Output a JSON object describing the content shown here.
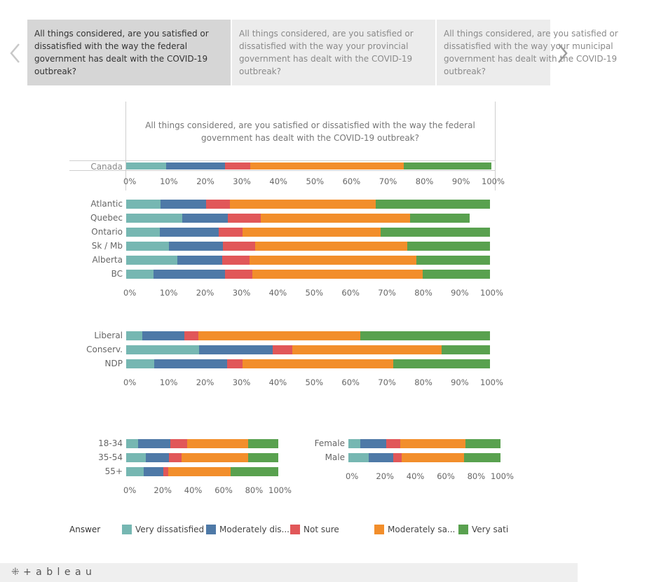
{
  "tabs": [
    {
      "text": "All things considered, are you satisfied or dissatisfied with the way the federal government has dealt with the COVID-19 outbreak?"
    },
    {
      "text": "All things considered, are you satisfied or dissatisfied with the way your provincial government has dealt with the COVID-19 outbreak?"
    },
    {
      "text": "All things considered, are you satisfied or dissatisfied with the way your municipal government has dealt with the COVID-19 outbreak?"
    }
  ],
  "chart_title": "All things considered, are you satisfied or dissatisfied with the way the federal government has dealt with the COVID-19 outbreak?",
  "colors": {
    "very_dissatisfied": "#76b7b2",
    "moderately_dissatisfied": "#4e79a7",
    "not_sure": "#e15759",
    "moderately_satisfied": "#f28e2b",
    "very_satisfied": "#59a14f"
  },
  "legend": {
    "title": "Answer",
    "items": [
      {
        "key": "very_dissatisfied",
        "label": "Very dissatisfied"
      },
      {
        "key": "moderately_dissatisfied",
        "label": "Moderately dis..."
      },
      {
        "key": "not_sure",
        "label": "Not sure"
      },
      {
        "key": "moderately_satisfied",
        "label": "Moderately sa..."
      },
      {
        "key": "very_satisfied",
        "label": "Very sati"
      }
    ]
  },
  "chart_data": [
    {
      "type": "bar",
      "stacked": true,
      "orientation": "horizontal",
      "title": "All things considered, are you satisfied or dissatisfied with the way the federal government has dealt with the COVID-19 outbreak?",
      "xlim": [
        0,
        100
      ],
      "xticks": [
        "0%",
        "10%",
        "20%",
        "30%",
        "40%",
        "50%",
        "60%",
        "70%",
        "80%",
        "90%",
        "100%"
      ],
      "categories": [
        "Canada"
      ],
      "rows": [
        [
          11,
          16,
          7,
          42,
          24
        ]
      ]
    },
    {
      "type": "bar",
      "stacked": true,
      "orientation": "horizontal",
      "xlim": [
        0,
        100
      ],
      "xticks": [
        "0%",
        "10%",
        "20%",
        "30%",
        "40%",
        "50%",
        "60%",
        "70%",
        "80%",
        "90%",
        "100%"
      ],
      "categories": [
        "Atlantic",
        "Quebec",
        "Ontario",
        "Sk / Mb",
        "Alberta",
        "BC"
      ],
      "rows": [
        [
          9.5,
          12.5,
          6.5,
          40,
          31.5
        ],
        [
          15.5,
          12.5,
          9,
          41,
          16.5
        ],
        [
          9.2,
          16.3,
          6.4,
          38.1,
          30
        ],
        [
          11.7,
          14.9,
          8.8,
          41.8,
          22.8
        ],
        [
          14.1,
          12.3,
          7.5,
          45.8,
          20.3
        ],
        [
          7.5,
          19.6,
          7.5,
          46.9,
          18.5
        ]
      ]
    },
    {
      "type": "bar",
      "stacked": true,
      "orientation": "horizontal",
      "xlim": [
        0,
        100
      ],
      "xticks": [
        "0%",
        "10%",
        "20%",
        "30%",
        "40%",
        "50%",
        "60%",
        "70%",
        "80%",
        "90%",
        "100%"
      ],
      "categories": [
        "Liberal",
        "Conserv.",
        "NDP"
      ],
      "rows": [
        [
          4.4,
          11.6,
          3.8,
          44.6,
          35.6
        ],
        [
          20.1,
          20.1,
          5.4,
          41.2,
          13.2
        ],
        [
          7.7,
          20.1,
          4.2,
          41.5,
          26.5
        ]
      ]
    },
    {
      "type": "bar",
      "stacked": true,
      "orientation": "horizontal",
      "xlim": [
        0,
        100
      ],
      "xticks": [
        "0%",
        "20%",
        "40%",
        "60%",
        "80%",
        "100%"
      ],
      "categories": [
        "18-34",
        "35-54",
        "55+"
      ],
      "rows": [
        [
          8,
          21,
          11,
          40,
          20
        ],
        [
          13,
          15,
          8.5,
          43.5,
          20
        ],
        [
          11.5,
          13,
          3,
          41,
          31.5
        ]
      ]
    },
    {
      "type": "bar",
      "stacked": true,
      "orientation": "horizontal",
      "xlim": [
        0,
        100
      ],
      "xticks": [
        "0%",
        "20%",
        "40%",
        "60%",
        "80%",
        "100%"
      ],
      "categories": [
        "Female",
        "Male"
      ],
      "rows": [
        [
          8,
          17,
          9,
          43,
          23
        ],
        [
          13.5,
          16,
          5.5,
          41,
          24
        ]
      ]
    }
  ],
  "footer": {
    "brand": "+ a b l e a u"
  }
}
